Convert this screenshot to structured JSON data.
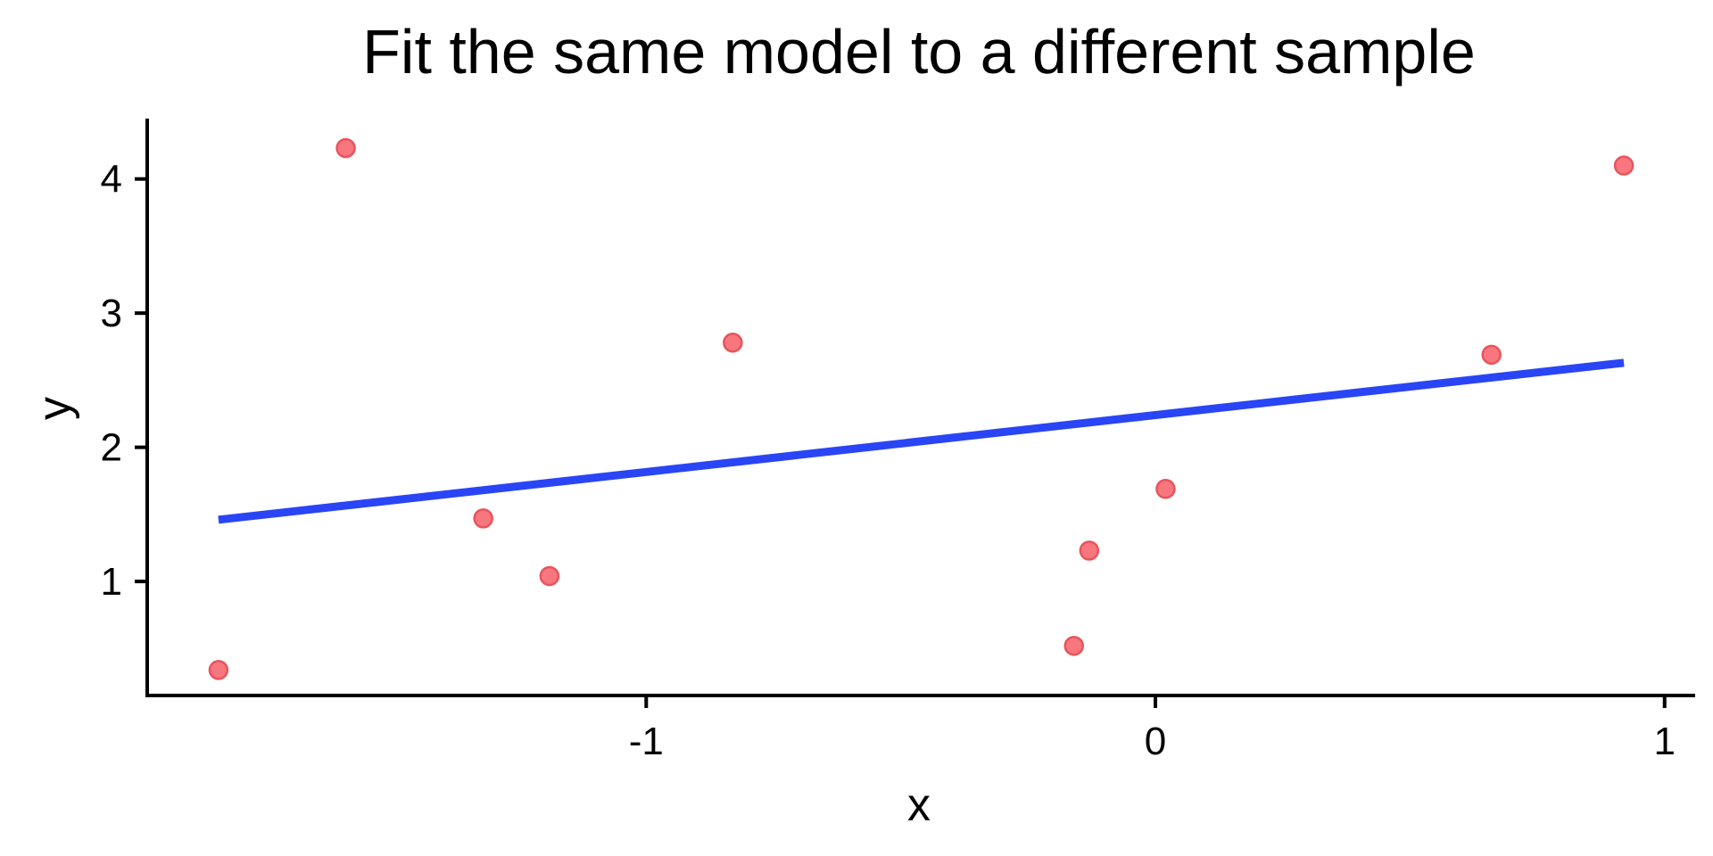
{
  "chart_data": {
    "type": "scatter",
    "title": "Fit the same model to a different sample",
    "xlabel": "x",
    "ylabel": "y",
    "xlim": [
      -1.98,
      1.06
    ],
    "ylim": [
      0.15,
      4.45
    ],
    "x_ticks": [
      -1,
      0,
      1
    ],
    "x_tick_labels": [
      "-1",
      "0",
      "1"
    ],
    "y_ticks": [
      1,
      2,
      3,
      4
    ],
    "y_tick_labels": [
      "1",
      "2",
      "3",
      "4"
    ],
    "grid": false,
    "legend": "none",
    "point_color": "#f8767d",
    "point_edge_color": "#e8545c",
    "line_color": "#2a45f5",
    "points": [
      {
        "x": -1.84,
        "y": 0.34
      },
      {
        "x": -1.59,
        "y": 4.23
      },
      {
        "x": -1.32,
        "y": 1.47
      },
      {
        "x": -1.19,
        "y": 1.04
      },
      {
        "x": -0.83,
        "y": 2.78
      },
      {
        "x": -0.16,
        "y": 0.52
      },
      {
        "x": -0.13,
        "y": 1.23
      },
      {
        "x": 0.02,
        "y": 1.69
      },
      {
        "x": 0.66,
        "y": 2.69
      },
      {
        "x": 0.92,
        "y": 4.1
      }
    ],
    "fit_line": {
      "x": [
        -1.84,
        0.92
      ],
      "y": [
        1.46,
        2.63
      ]
    }
  }
}
